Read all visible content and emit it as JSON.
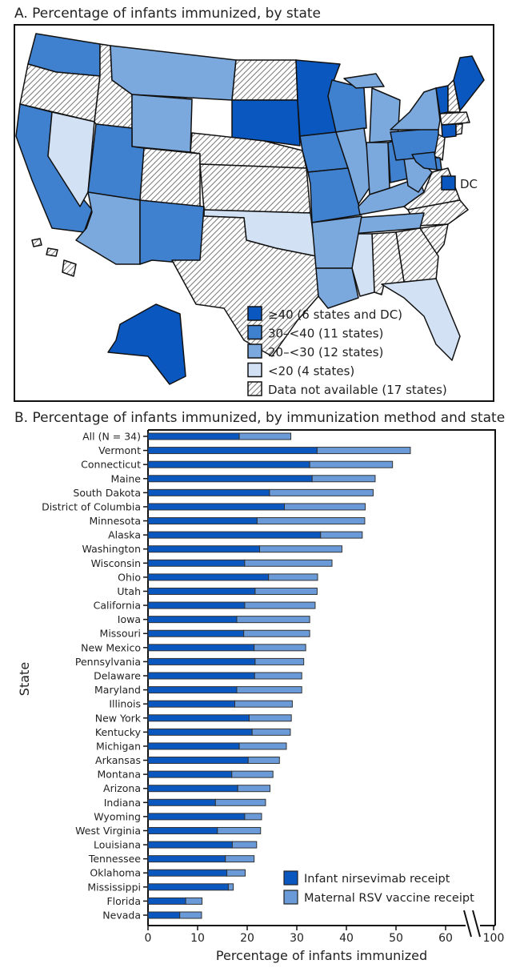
{
  "colors": {
    "ge40": "#0a57bf",
    "30to40": "#3f80cf",
    "20to30": "#7ba9de",
    "lt20": "#d2e1f4",
    "na": "hatch",
    "nirsevimab": "#0a57bf",
    "maternal": "#6a9bd8"
  },
  "map": {
    "title": "A. Percentage of infants immunized, by state",
    "dc_label": "DC",
    "legend": [
      {
        "key": "ge40",
        "label": "≥40 (6 states and DC)"
      },
      {
        "key": "30to40",
        "label": "30–<40 (11 states)"
      },
      {
        "key": "20to30",
        "label": "20–<30 (12 states)"
      },
      {
        "key": "lt20",
        "label": "<20 (4 states)"
      },
      {
        "key": "na",
        "label": "Data not available (17 states)"
      }
    ],
    "states": {
      "WA": "30to40",
      "OR": "na",
      "CA": "30to40",
      "NV": "lt20",
      "ID": "na",
      "MT": "20to30",
      "WY": "20to30",
      "UT": "30to40",
      "AZ": "20to30",
      "CO": "na",
      "NM": "30to40",
      "ND": "na",
      "SD": "ge40",
      "NE": "na",
      "KS": "na",
      "OK": "lt20",
      "TX": "na",
      "MN": "ge40",
      "IA": "30to40",
      "MO": "30to40",
      "AR": "20to30",
      "LA": "20to30",
      "WI": "30to40",
      "IL": "20to30",
      "MI": "20to30",
      "IN": "20to30",
      "OH": "30to40",
      "KY": "20to30",
      "TN": "20to30",
      "MS": "lt20",
      "AL": "na",
      "GA": "na",
      "FL": "lt20",
      "SC": "na",
      "NC": "na",
      "VA": "na",
      "WV": "20to30",
      "PA": "30to40",
      "NY": "20to30",
      "VT": "ge40",
      "NH": "na",
      "ME": "ge40",
      "MA": "na",
      "CT": "ge40",
      "RI": "na",
      "NJ": "na",
      "DE": "30to40",
      "MD": "30to40",
      "AK": "ge40",
      "HI": "na",
      "DC": "ge40"
    }
  },
  "chart_data": {
    "type": "bar",
    "orientation": "horizontal",
    "stacked": true,
    "title": "B. Percentage of infants immunized, by immunization method and state",
    "xlabel": "Percentage of infants immunized",
    "ylabel": "State",
    "xlim": [
      0,
      100
    ],
    "axis_break": [
      65,
      98
    ],
    "xticks": [
      "0",
      "10",
      "20",
      "30",
      "40",
      "50",
      "60",
      "100"
    ],
    "legend_position": "bottom-right",
    "categories": [
      "All (N = 34)",
      "Vermont",
      "Connecticut",
      "Maine",
      "South Dakota",
      "District of Columbia",
      "Minnesota",
      "Alaska",
      "Washington",
      "Wisconsin",
      "Ohio",
      "Utah",
      "California",
      "Iowa",
      "Missouri",
      "New Mexico",
      "Pennsylvania",
      "Delaware",
      "Maryland",
      "Illinois",
      "New York",
      "Kentucky",
      "Michigan",
      "Arkansas",
      "Montana",
      "Arizona",
      "Indiana",
      "Wyoming",
      "West Virginia",
      "Louisiana",
      "Tennessee",
      "Oklahoma",
      "Mississippi",
      "Florida",
      "Nevada"
    ],
    "series": [
      {
        "name": "Infant nirsevimab receipt",
        "values": [
          18.4,
          34.1,
          32.6,
          33.1,
          24.5,
          27.5,
          22.0,
          34.8,
          22.5,
          19.5,
          24.3,
          21.6,
          19.5,
          17.9,
          19.3,
          21.4,
          21.6,
          21.5,
          17.9,
          17.5,
          20.4,
          21.0,
          18.4,
          20.2,
          16.9,
          18.1,
          13.6,
          19.5,
          14.0,
          17.0,
          15.6,
          15.9,
          16.2,
          7.6,
          6.4
        ]
      },
      {
        "name": "Maternal RSV vaccine receipt",
        "values": [
          10.4,
          18.8,
          16.7,
          12.7,
          20.9,
          16.3,
          21.7,
          8.4,
          16.6,
          17.6,
          9.9,
          12.5,
          14.2,
          14.7,
          13.3,
          10.4,
          9.8,
          9.5,
          13.1,
          11.6,
          8.5,
          7.7,
          9.5,
          6.3,
          8.3,
          6.5,
          10.1,
          3.4,
          8.7,
          4.9,
          5.8,
          3.7,
          1.0,
          3.3,
          4.4
        ]
      }
    ]
  }
}
